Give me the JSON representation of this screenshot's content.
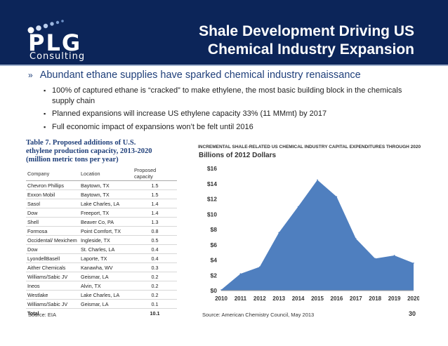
{
  "header": {
    "logo_text": "PLG",
    "logo_sub": "Consulting",
    "title_line1": "Shale Development Driving US",
    "title_line2": "Chemical Industry Expansion"
  },
  "main_bullet": "Abundant ethane supplies have sparked chemical industry renaissance",
  "sub_bullets": [
    "100% of captured ethane is “cracked” to make ethylene, the most basic building block in the chemicals supply chain",
    "Planned expansions will increase US ethylene capacity 33% (11 MMmt) by 2017",
    "Full economic impact of expansions won’t be felt until 2016"
  ],
  "table": {
    "title_line1": "Table 7. Proposed additions of U.S.",
    "title_line2": "ethylene production capacity, 2013-2020",
    "title_line3": "(million metric tons per year)",
    "headers": [
      "Company",
      "Location",
      "Proposed capacity"
    ],
    "rows": [
      [
        "Chevron Phillips",
        "Baytown, TX",
        "1.5"
      ],
      [
        "Exxon Mobil",
        "Baytown, TX",
        "1.5"
      ],
      [
        "Sasol",
        "Lake Charles, LA",
        "1.4"
      ],
      [
        "Dow",
        "Freeport, TX",
        "1.4"
      ],
      [
        "Shell",
        "Beaver Co, PA",
        "1.3"
      ],
      [
        "Formosa",
        "Point Comfort, TX",
        "0.8"
      ],
      [
        "Occidental/ Mexichem",
        "Ingleside, TX",
        "0.5"
      ],
      [
        "Dow",
        "St. Charles, LA",
        "0.4"
      ],
      [
        "LyondellBasell",
        "Laporte, TX",
        "0.4"
      ],
      [
        "Aither Chemicals",
        "Kanawha, WV",
        "0.3"
      ],
      [
        "Williams/Sabic JV",
        "Geismar, LA",
        "0.2"
      ],
      [
        "Ineos",
        "Alvin, TX",
        "0.2"
      ],
      [
        "Westlake",
        "Lake Charles, LA",
        "0.2"
      ],
      [
        "Williams/Sabic JV",
        "Geismar, LA",
        "0.1"
      ]
    ],
    "total_label": "Total",
    "total_value": "10.1"
  },
  "chart_data": {
    "type": "area",
    "title": "INCREMENTAL SHALE-RELATED US CHEMICAL INDUSTRY CAPITAL EXPENDITURES THROUGH 2020",
    "subtitle": "Billions of 2012 Dollars",
    "x": [
      "2010",
      "2011",
      "2012",
      "2013",
      "2014",
      "2015",
      "2016",
      "2017",
      "2018",
      "2019",
      "2020"
    ],
    "values": [
      0.1,
      2.2,
      3.1,
      7.6,
      11.0,
      14.5,
      12.3,
      6.8,
      4.2,
      4.6,
      3.6
    ],
    "y_ticks": [
      "$0",
      "$2",
      "$4",
      "$6",
      "$8",
      "$10",
      "$12",
      "$14",
      "$16"
    ],
    "ylim": [
      0,
      16
    ],
    "fill_color": "#4f7fbf"
  },
  "footer": {
    "source_left": "Source: EIA",
    "source_right": "Source: American Chemistry Council, May 2013",
    "page_number": "30"
  }
}
